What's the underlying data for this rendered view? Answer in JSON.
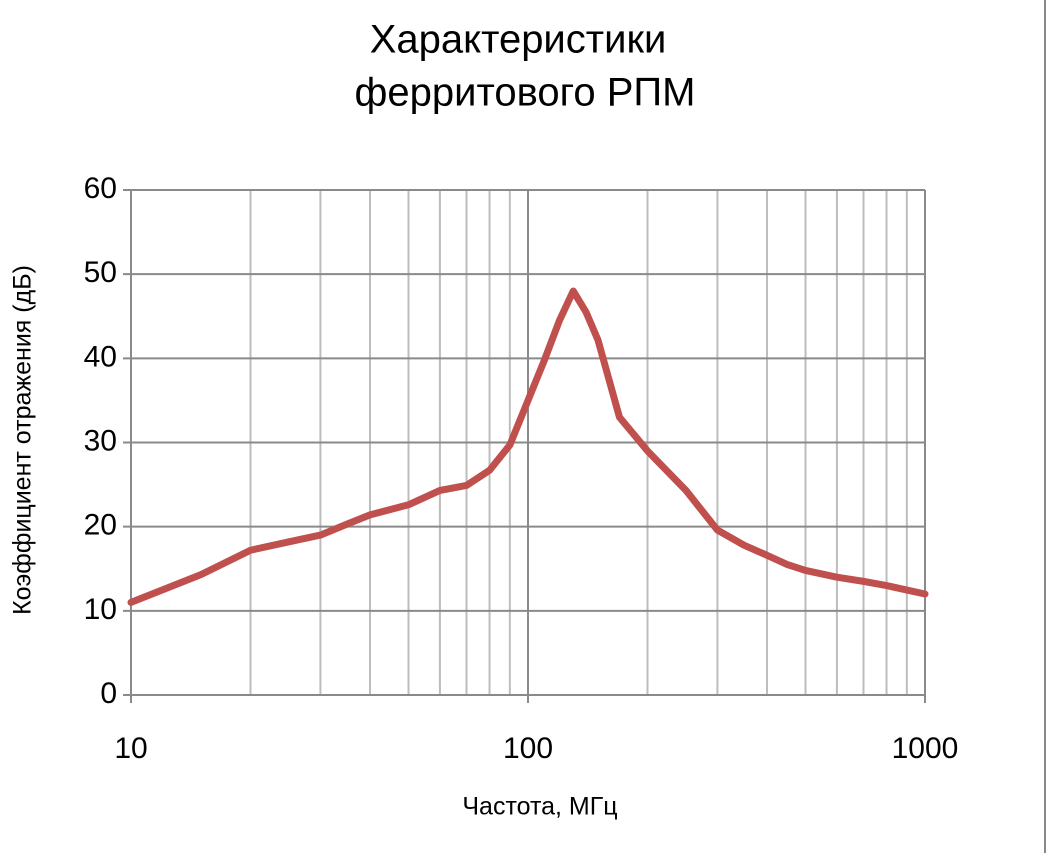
{
  "chart_data": {
    "type": "line",
    "title": [
      "Характеристики",
      "ферритового РПМ"
    ],
    "x_label": "Частота,  МГц",
    "y_label": "Коэффициент отражения (дБ)",
    "x_scale": "log",
    "x": [
      10,
      15,
      20,
      25,
      30,
      35,
      40,
      50,
      60,
      70,
      80,
      90,
      100,
      110,
      120,
      130,
      140,
      150,
      170,
      200,
      250,
      300,
      350,
      400,
      450,
      500,
      600,
      700,
      800,
      1000
    ],
    "series": [
      {
        "name": "Коэффициент отражения",
        "color": "#c0504d",
        "values": [
          11,
          14.3,
          17.2,
          18.2,
          19,
          20.3,
          21.4,
          22.6,
          24.3,
          24.9,
          26.7,
          29.7,
          35,
          39.8,
          44.5,
          48,
          45.5,
          42.2,
          33,
          29,
          24.3,
          19.6,
          17.8,
          16.6,
          15.5,
          14.8,
          14,
          13.5,
          13,
          12
        ]
      }
    ],
    "xlim": [
      10,
      1000
    ],
    "xticks": [
      10,
      100,
      1000
    ],
    "xminor": [
      20,
      30,
      40,
      50,
      60,
      70,
      80,
      90,
      200,
      300,
      400,
      500,
      600,
      700,
      800,
      900
    ],
    "ylim": [
      0,
      60
    ],
    "yticks": [
      0,
      10,
      20,
      30,
      40,
      50,
      60
    ],
    "grid": true
  }
}
